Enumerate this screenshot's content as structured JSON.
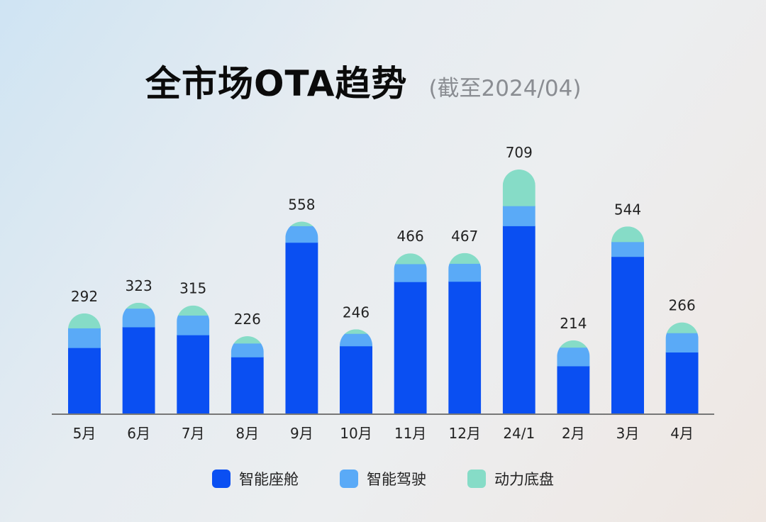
{
  "header": {
    "title": "全市场OTA趋势",
    "subtitle": "(截至2024/04)"
  },
  "colors": {
    "cockpit": "#0a4ff2",
    "driving": "#5aaaf7",
    "chassis": "#86dcc7",
    "axis": "#777777"
  },
  "chart_data": {
    "type": "bar",
    "stacked": true,
    "categories": [
      "5月",
      "6月",
      "7月",
      "8月",
      "9月",
      "10月",
      "11月",
      "12月",
      "24/1",
      "2月",
      "3月",
      "4月"
    ],
    "totals": [
      292,
      323,
      315,
      226,
      558,
      246,
      466,
      467,
      709,
      214,
      544,
      266
    ],
    "series": [
      {
        "name": "智能座舱",
        "color": "#0a4ff2",
        "values": [
          193,
          253,
          230,
          166,
          498,
          198,
          384,
          385,
          546,
          140,
          457,
          180
        ]
      },
      {
        "name": "智能驾驶",
        "color": "#5aaaf7",
        "values": [
          57,
          54,
          57,
          40,
          48,
          36,
          52,
          52,
          58,
          54,
          43,
          56
        ]
      },
      {
        "name": "动力底盘",
        "color": "#86dcc7",
        "values": [
          42,
          16,
          28,
          20,
          12,
          12,
          30,
          30,
          105,
          20,
          44,
          30
        ]
      }
    ],
    "ylim": [
      0,
      709
    ],
    "grid": false,
    "legend": "bottom"
  }
}
